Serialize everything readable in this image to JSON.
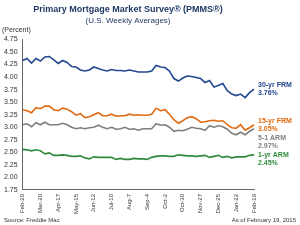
{
  "chart_data": {
    "type": "line",
    "title": "Primary Mortgage Market Survey® (PMMS®)",
    "subtitle": "(U.S. Weekly Averages)",
    "y_label": "(Percent)",
    "source": "Source: Freddie Mac",
    "note": "As of February 19, 2015",
    "categories": [
      "Feb-20",
      null,
      null,
      null,
      "Mar-20",
      null,
      null,
      null,
      "Apr-17",
      null,
      null,
      null,
      "May-15",
      null,
      null,
      null,
      "Jun-12",
      null,
      null,
      null,
      "Jul-10",
      null,
      null,
      null,
      "Aug-7",
      null,
      null,
      null,
      "Sep-4",
      null,
      null,
      null,
      "Oct-2",
      null,
      null,
      null,
      "Oct-30",
      null,
      null,
      null,
      "Nov-27",
      null,
      null,
      null,
      "Dec-25",
      null,
      null,
      null,
      "Jan-22",
      null,
      null,
      null,
      "Feb-19"
    ],
    "series": [
      {
        "name": "30-yr FRM",
        "color": "#23488f",
        "values": [
          4.33,
          4.37,
          4.28,
          4.37,
          4.32,
          4.4,
          4.41,
          4.34,
          4.27,
          4.33,
          4.29,
          4.21,
          4.2,
          4.14,
          4.12,
          4.14,
          4.2,
          4.17,
          4.14,
          4.12,
          4.15,
          4.13,
          4.13,
          4.12,
          4.14,
          4.12,
          4.1,
          4.1,
          4.1,
          4.12,
          4.23,
          4.2,
          4.19,
          4.12,
          3.97,
          3.92,
          3.98,
          4.02,
          4.01,
          3.99,
          3.97,
          3.89,
          3.93,
          3.8,
          3.83,
          3.87,
          3.73,
          3.66,
          3.63,
          3.66,
          3.59,
          3.69,
          3.76
        ]
      },
      {
        "name": "15-yr FRM",
        "color": "#e2680e",
        "values": [
          3.35,
          3.33,
          3.29,
          3.39,
          3.37,
          3.42,
          3.42,
          3.35,
          3.33,
          3.38,
          3.36,
          3.31,
          3.24,
          3.27,
          3.19,
          3.21,
          3.25,
          3.29,
          3.23,
          3.23,
          3.26,
          3.22,
          3.23,
          3.23,
          3.26,
          3.24,
          3.25,
          3.24,
          3.24,
          3.26,
          3.38,
          3.33,
          3.35,
          3.26,
          3.15,
          3.08,
          3.13,
          3.19,
          3.21,
          3.17,
          3.1,
          3.11,
          3.13,
          3.14,
          3.12,
          3.13,
          3.05,
          2.99,
          2.98,
          3.05,
          2.94,
          2.99,
          3.05
        ]
      },
      {
        "name": "5-1 ARM",
        "color": "#7f7f7f",
        "values": [
          3.05,
          3.07,
          3.01,
          3.09,
          3.05,
          3.1,
          3.05,
          3.05,
          3.05,
          3.08,
          3.05,
          3.0,
          2.97,
          2.99,
          2.97,
          2.99,
          3.0,
          3.04,
          3.0,
          2.97,
          3.0,
          2.96,
          2.97,
          3.0,
          2.96,
          2.97,
          2.94,
          2.97,
          2.97,
          2.97,
          3.07,
          3.04,
          3.05,
          3.0,
          2.92,
          2.94,
          2.93,
          2.96,
          3.0,
          2.98,
          2.97,
          2.94,
          3.03,
          3.0,
          3.03,
          3.01,
          2.96,
          2.88,
          2.85,
          2.9,
          2.85,
          2.92,
          2.97
        ]
      },
      {
        "name": "1-yr ARM",
        "color": "#2f8a3c",
        "values": [
          2.56,
          2.55,
          2.53,
          2.55,
          2.53,
          2.47,
          2.49,
          2.44,
          2.44,
          2.45,
          2.44,
          2.42,
          2.42,
          2.43,
          2.39,
          2.37,
          2.41,
          2.4,
          2.4,
          2.4,
          2.4,
          2.36,
          2.38,
          2.36,
          2.36,
          2.38,
          2.37,
          2.37,
          2.36,
          2.4,
          2.42,
          2.43,
          2.43,
          2.42,
          2.42,
          2.45,
          2.44,
          2.43,
          2.43,
          2.42,
          2.43,
          2.44,
          2.4,
          2.42,
          2.44,
          2.4,
          2.42,
          2.39,
          2.41,
          2.41,
          2.41,
          2.44,
          2.45
        ]
      }
    ],
    "annotations": [
      {
        "series": "30-yr FRM",
        "label": "3.76%",
        "value": 3.76
      },
      {
        "series": "15-yr FRM",
        "label": "3.05%",
        "value": 3.05
      },
      {
        "series": "5-1 ARM",
        "label": "2.97%",
        "value": 2.97
      },
      {
        "series": "1-yr ARM",
        "label": "2.45%",
        "value": 2.45
      }
    ],
    "ylim": [
      1.75,
      4.75
    ],
    "yticks": [
      1.75,
      {
        "value": 2.0,
        "label": "2.00"
      },
      2.25,
      {
        "value": 2.5,
        "label": "2.50"
      },
      2.75,
      {
        "value": 3.0,
        "label": "3.00"
      },
      3.25,
      {
        "value": 3.5,
        "label": "3.50"
      },
      3.75,
      {
        "value": 4.0,
        "label": "4.00"
      },
      4.25,
      {
        "value": 4.5,
        "label": "4.50"
      },
      4.75
    ],
    "grid": false
  }
}
